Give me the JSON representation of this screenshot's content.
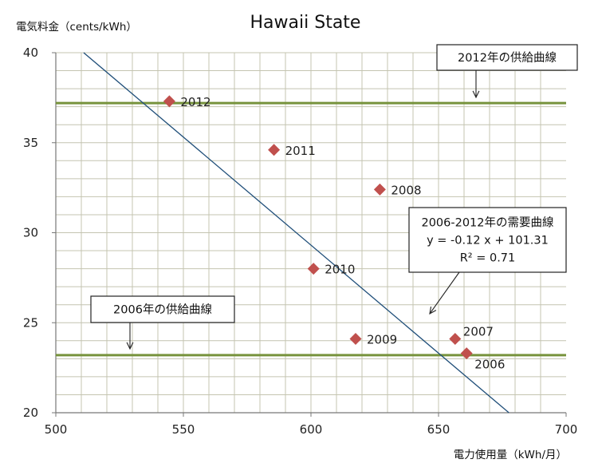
{
  "chart_data": {
    "type": "scatter",
    "title": "Hawaii State",
    "xlabel": "電力使用量（kWh/月）",
    "ylabel": "電気料金（cents/kWh）",
    "xlim": [
      500,
      700
    ],
    "ylim": [
      20,
      40
    ],
    "x_ticks": [
      "500",
      "550",
      "600",
      "650",
      "700"
    ],
    "y_ticks": [
      "20",
      "25",
      "30",
      "35",
      "40"
    ],
    "grid": true,
    "points": [
      {
        "label": "2006",
        "x": 661,
        "y": 23.3
      },
      {
        "label": "2007",
        "x": 656.5,
        "y": 24.1
      },
      {
        "label": "2008",
        "x": 627,
        "y": 32.4
      },
      {
        "label": "2009",
        "x": 617.5,
        "y": 24.1
      },
      {
        "label": "2010",
        "x": 601,
        "y": 28.0
      },
      {
        "label": "2011",
        "x": 585.5,
        "y": 34.6
      },
      {
        "label": "2012",
        "x": 544.5,
        "y": 37.3
      }
    ],
    "marker_color": "#c0504d",
    "demand_line": {
      "slope": -0.12,
      "intercept": 101.31,
      "color": "#1f4e79",
      "label_lines": [
        "2006-2012年の需要曲線",
        "y = -0.12 x + 101.31",
        "R² = 0.71"
      ]
    },
    "supply_lines": [
      {
        "y": 37.2,
        "label": "2012年の供給曲線",
        "color": "#77933c"
      },
      {
        "y": 23.2,
        "label": "2006年の供給曲線",
        "color": "#77933c"
      }
    ]
  }
}
